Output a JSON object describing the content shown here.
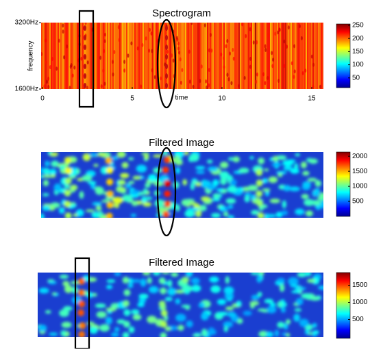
{
  "panels": [
    {
      "title": "Spectrogram",
      "xlabel": "time",
      "ylabel": "frequency",
      "xlim": [
        0,
        15.65
      ],
      "xticks": [
        0,
        5,
        10,
        15
      ],
      "ylim": [
        1600,
        3200
      ],
      "yticks": [
        {
          "value": 3200,
          "label": "3200Hz"
        },
        {
          "value": 1600,
          "label": "1600Hz"
        }
      ],
      "colorbar": {
        "lim": [
          13,
          255
        ],
        "ticks": [
          50,
          100,
          150,
          200,
          250
        ]
      }
    },
    {
      "title": "Filtered Image",
      "colorbar": {
        "lim": [
          0,
          2140
        ],
        "ticks": [
          500,
          1000,
          1500,
          2000
        ]
      }
    },
    {
      "title": "Filtered Image",
      "colorbar": {
        "lim": [
          -50,
          1870
        ],
        "ticks": [
          500,
          1000,
          1500
        ]
      }
    }
  ]
}
